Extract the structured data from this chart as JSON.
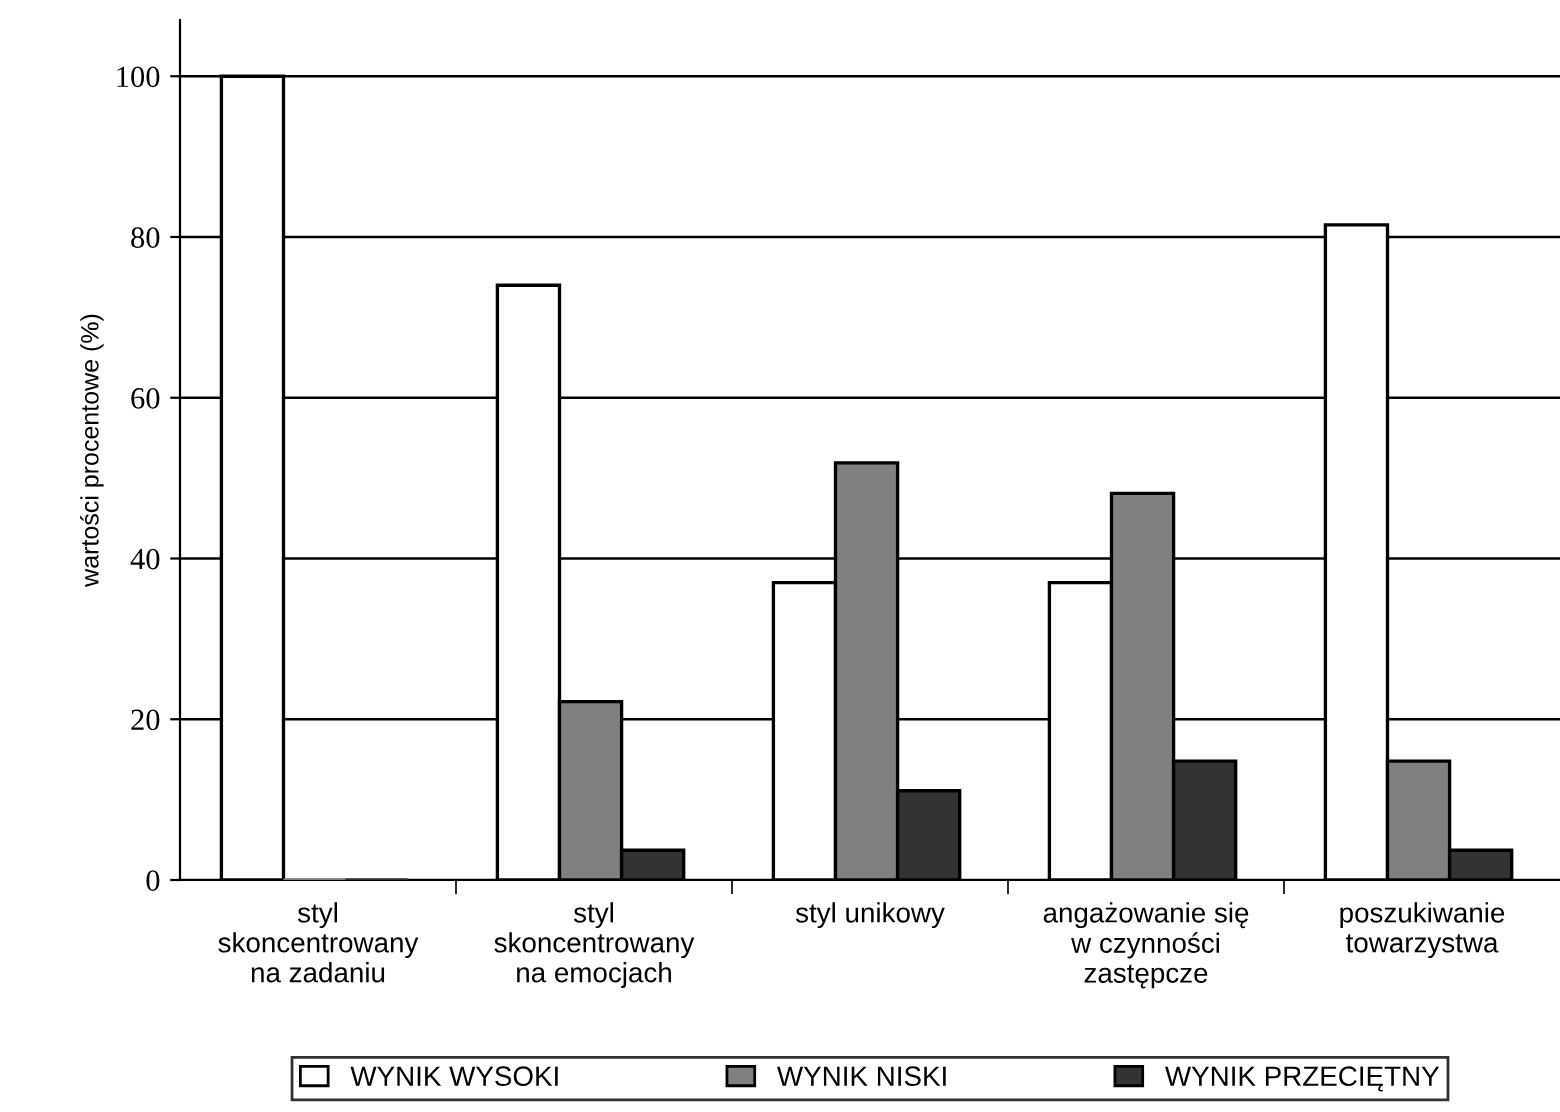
{
  "chart_data": {
    "type": "bar",
    "ylabel": "wartości procentowe (%)",
    "categories": [
      "styl\nskoncentrowany\nna zadaniu",
      "styl\nskoncentrowany\nna emocjach",
      "styl unikowy",
      "angażowanie się\nw czynności\nzastępcze",
      "poszukiwanie\ntowarzystwa"
    ],
    "series": [
      {
        "name": "WYNIK WYSOKI",
        "color": "#ffffff",
        "values": [
          100,
          74,
          37,
          37,
          81.5
        ]
      },
      {
        "name": "WYNIK NISKI",
        "color": "#808080",
        "values": [
          0,
          22.2,
          51.9,
          48.1,
          14.8
        ]
      },
      {
        "name": "WYNIK PRZECIĘTNY",
        "color": "#333333",
        "values": [
          0,
          3.7,
          11.1,
          14.8,
          3.7
        ]
      }
    ],
    "ylim": [
      0,
      107
    ],
    "yticks": [
      0,
      20,
      40,
      60,
      80,
      100
    ],
    "grid": "y",
    "legend": "bottom"
  }
}
